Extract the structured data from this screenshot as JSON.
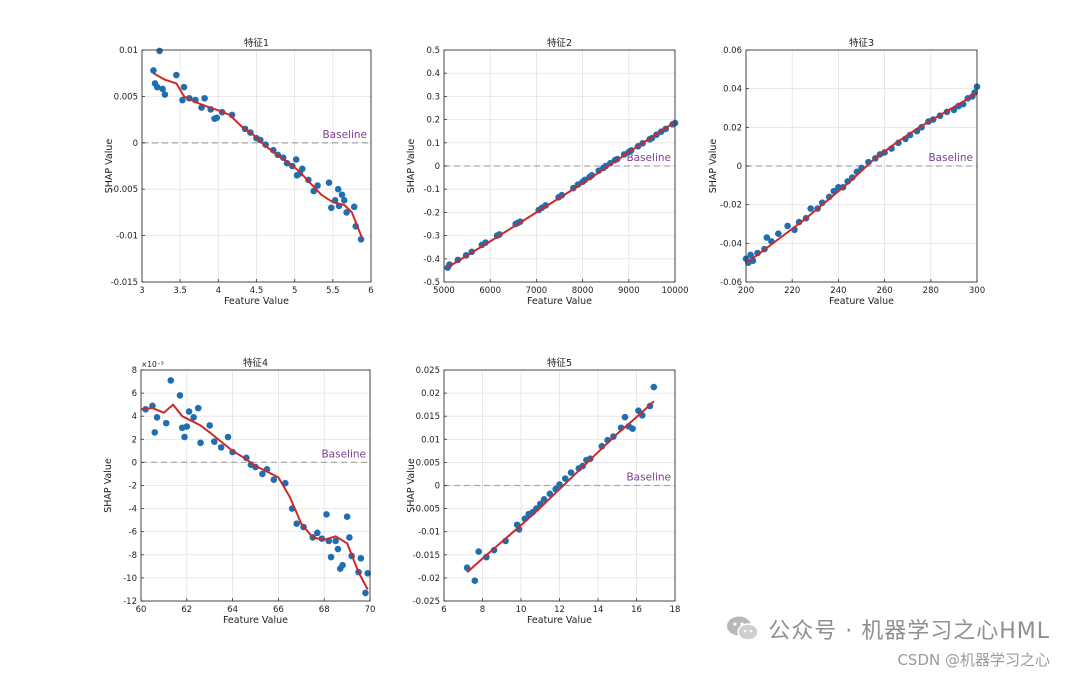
{
  "chart_data": [
    {
      "type": "scatter",
      "title": "特征1",
      "xlabel": "Feature Value",
      "ylabel": "SHAP Value",
      "xlim": [
        3,
        6
      ],
      "ylim": [
        -0.015,
        0.01
      ],
      "xticks": [
        3,
        3.5,
        4,
        4.5,
        5,
        5.5,
        6
      ],
      "yticks": [
        -0.015,
        -0.01,
        -0.005,
        0,
        0.005,
        0.01
      ],
      "baseline_label": "Baseline",
      "points": [
        [
          3.15,
          0.0078
        ],
        [
          3.17,
          0.0064
        ],
        [
          3.2,
          0.006
        ],
        [
          3.23,
          0.0099
        ],
        [
          3.27,
          0.0058
        ],
        [
          3.3,
          0.0052
        ],
        [
          3.45,
          0.0073
        ],
        [
          3.53,
          0.0046
        ],
        [
          3.55,
          0.006
        ],
        [
          3.62,
          0.0048
        ],
        [
          3.7,
          0.0046
        ],
        [
          3.78,
          0.0038
        ],
        [
          3.82,
          0.0048
        ],
        [
          3.9,
          0.0036
        ],
        [
          3.95,
          0.0026
        ],
        [
          3.98,
          0.0027
        ],
        [
          4.05,
          0.0033
        ],
        [
          4.18,
          0.003
        ],
        [
          4.35,
          0.0015
        ],
        [
          4.42,
          0.0011
        ],
        [
          4.5,
          0.0005
        ],
        [
          4.55,
          0.0003
        ],
        [
          4.62,
          -0.0002
        ],
        [
          4.72,
          -0.0008
        ],
        [
          4.78,
          -0.0013
        ],
        [
          4.85,
          -0.0016
        ],
        [
          4.9,
          -0.0022
        ],
        [
          4.97,
          -0.0025
        ],
        [
          5.02,
          -0.0018
        ],
        [
          5.03,
          -0.0035
        ],
        [
          5.07,
          -0.0033
        ],
        [
          5.1,
          -0.0028
        ],
        [
          5.18,
          -0.004
        ],
        [
          5.25,
          -0.0052
        ],
        [
          5.3,
          -0.0046
        ],
        [
          5.45,
          -0.0043
        ],
        [
          5.48,
          -0.007
        ],
        [
          5.53,
          -0.0062
        ],
        [
          5.57,
          -0.005
        ],
        [
          5.58,
          -0.0068
        ],
        [
          5.62,
          -0.0056
        ],
        [
          5.65,
          -0.0062
        ],
        [
          5.68,
          -0.0075
        ],
        [
          5.78,
          -0.0069
        ],
        [
          5.8,
          -0.009
        ],
        [
          5.87,
          -0.0104
        ]
      ],
      "curve": [
        [
          3.15,
          0.0075
        ],
        [
          3.3,
          0.0068
        ],
        [
          3.45,
          0.0064
        ],
        [
          3.55,
          0.005
        ],
        [
          3.7,
          0.0044
        ],
        [
          3.85,
          0.0039
        ],
        [
          4.0,
          0.0035
        ],
        [
          4.15,
          0.003
        ],
        [
          4.3,
          0.0018
        ],
        [
          4.45,
          0.0009
        ],
        [
          4.6,
          -0.0002
        ],
        [
          4.75,
          -0.0012
        ],
        [
          4.9,
          -0.002
        ],
        [
          5.05,
          -0.003
        ],
        [
          5.2,
          -0.0043
        ],
        [
          5.35,
          -0.0056
        ],
        [
          5.5,
          -0.0064
        ],
        [
          5.65,
          -0.0067
        ],
        [
          5.75,
          -0.0075
        ],
        [
          5.88,
          -0.0102
        ]
      ]
    },
    {
      "type": "scatter",
      "title": "特征2",
      "xlabel": "Feature Value",
      "ylabel": "SHAP Value",
      "xlim": [
        5000,
        10000
      ],
      "ylim": [
        -0.5,
        0.5
      ],
      "xticks": [
        5000,
        6000,
        7000,
        8000,
        9000,
        10000
      ],
      "yticks": [
        -0.5,
        -0.4,
        -0.3,
        -0.2,
        -0.1,
        0,
        0.1,
        0.2,
        0.3,
        0.4,
        0.5
      ],
      "baseline_label": "Baseline",
      "points": [
        [
          5080,
          -0.438
        ],
        [
          5120,
          -0.425
        ],
        [
          5300,
          -0.405
        ],
        [
          5480,
          -0.385
        ],
        [
          5600,
          -0.37
        ],
        [
          5820,
          -0.34
        ],
        [
          5900,
          -0.33
        ],
        [
          6150,
          -0.3
        ],
        [
          6200,
          -0.295
        ],
        [
          6550,
          -0.25
        ],
        [
          6600,
          -0.245
        ],
        [
          6650,
          -0.24
        ],
        [
          7050,
          -0.19
        ],
        [
          7120,
          -0.18
        ],
        [
          7200,
          -0.17
        ],
        [
          7480,
          -0.135
        ],
        [
          7550,
          -0.126
        ],
        [
          7800,
          -0.095
        ],
        [
          7900,
          -0.08
        ],
        [
          8000,
          -0.068
        ],
        [
          8050,
          -0.06
        ],
        [
          8150,
          -0.048
        ],
        [
          8200,
          -0.04
        ],
        [
          8350,
          -0.02
        ],
        [
          8450,
          -0.008
        ],
        [
          8500,
          0.0
        ],
        [
          8600,
          0.012
        ],
        [
          8700,
          0.025
        ],
        [
          8750,
          0.03
        ],
        [
          8900,
          0.05
        ],
        [
          9000,
          0.06
        ],
        [
          9050,
          0.067
        ],
        [
          9200,
          0.085
        ],
        [
          9300,
          0.098
        ],
        [
          9450,
          0.115
        ],
        [
          9500,
          0.12
        ],
        [
          9600,
          0.135
        ],
        [
          9700,
          0.148
        ],
        [
          9800,
          0.16
        ],
        [
          9950,
          0.18
        ],
        [
          10000,
          0.185
        ]
      ],
      "curve": [
        [
          5050,
          -0.44
        ],
        [
          6000,
          -0.325
        ],
        [
          7000,
          -0.2
        ],
        [
          8000,
          -0.075
        ],
        [
          9000,
          0.06
        ],
        [
          10000,
          0.19
        ]
      ]
    },
    {
      "type": "scatter",
      "title": "特征3",
      "xlabel": "Feature Value",
      "ylabel": "SHAP Value",
      "xlim": [
        200,
        300
      ],
      "ylim": [
        -0.06,
        0.06
      ],
      "xticks": [
        200,
        220,
        240,
        260,
        280,
        300
      ],
      "yticks": [
        -0.06,
        -0.04,
        -0.02,
        0,
        0.02,
        0.04,
        0.06
      ],
      "baseline_label": "Baseline",
      "points": [
        [
          200,
          -0.048
        ],
        [
          201,
          -0.05
        ],
        [
          202,
          -0.046
        ],
        [
          203,
          -0.049
        ],
        [
          205,
          -0.045
        ],
        [
          208,
          -0.043
        ],
        [
          209,
          -0.037
        ],
        [
          211,
          -0.039
        ],
        [
          214,
          -0.035
        ],
        [
          218,
          -0.031
        ],
        [
          221,
          -0.033
        ],
        [
          223,
          -0.029
        ],
        [
          226,
          -0.027
        ],
        [
          228,
          -0.022
        ],
        [
          231,
          -0.022
        ],
        [
          233,
          -0.019
        ],
        [
          236,
          -0.016
        ],
        [
          238,
          -0.013
        ],
        [
          240,
          -0.011
        ],
        [
          242,
          -0.011
        ],
        [
          244,
          -0.008
        ],
        [
          246,
          -0.006
        ],
        [
          248,
          -0.003
        ],
        [
          250,
          -0.001
        ],
        [
          253,
          0.002
        ],
        [
          256,
          0.004
        ],
        [
          258,
          0.006
        ],
        [
          260,
          0.007
        ],
        [
          263,
          0.009
        ],
        [
          266,
          0.012
        ],
        [
          269,
          0.014
        ],
        [
          271,
          0.016
        ],
        [
          274,
          0.018
        ],
        [
          276,
          0.02
        ],
        [
          279,
          0.023
        ],
        [
          281,
          0.024
        ],
        [
          284,
          0.026
        ],
        [
          287,
          0.028
        ],
        [
          290,
          0.029
        ],
        [
          292,
          0.031
        ],
        [
          294,
          0.032
        ],
        [
          296,
          0.035
        ],
        [
          298,
          0.036
        ],
        [
          299,
          0.038
        ],
        [
          300,
          0.041
        ]
      ],
      "curve": [
        [
          200,
          -0.05
        ],
        [
          205,
          -0.046
        ],
        [
          215,
          -0.037
        ],
        [
          225,
          -0.028
        ],
        [
          235,
          -0.018
        ],
        [
          245,
          -0.008
        ],
        [
          255,
          0.003
        ],
        [
          265,
          0.012
        ],
        [
          275,
          0.02
        ],
        [
          285,
          0.027
        ],
        [
          295,
          0.034
        ],
        [
          300,
          0.038
        ]
      ]
    },
    {
      "type": "scatter",
      "title": "特征4",
      "xlabel": "Feature Value",
      "ylabel": "SHAP Value",
      "exponent_label": "×10⁻³",
      "xlim": [
        60,
        70
      ],
      "ylim": [
        -12,
        8
      ],
      "xticks": [
        60,
        62,
        64,
        66,
        68,
        70
      ],
      "yticks": [
        -12,
        -10,
        -8,
        -6,
        -4,
        -2,
        0,
        2,
        4,
        6,
        8
      ],
      "baseline_label": "Baseline",
      "points": [
        [
          60.2,
          4.6
        ],
        [
          60.5,
          4.9
        ],
        [
          60.6,
          2.6
        ],
        [
          60.7,
          3.9
        ],
        [
          61.1,
          3.4
        ],
        [
          61.3,
          7.1
        ],
        [
          61.7,
          5.8
        ],
        [
          61.8,
          3.0
        ],
        [
          61.9,
          2.2
        ],
        [
          62.0,
          3.1
        ],
        [
          62.1,
          4.4
        ],
        [
          62.3,
          3.9
        ],
        [
          62.5,
          4.7
        ],
        [
          62.6,
          1.7
        ],
        [
          63.0,
          3.2
        ],
        [
          63.2,
          1.8
        ],
        [
          63.5,
          1.3
        ],
        [
          63.8,
          2.2
        ],
        [
          64.0,
          0.9
        ],
        [
          64.6,
          0.4
        ],
        [
          64.8,
          -0.2
        ],
        [
          65.0,
          -0.4
        ],
        [
          65.3,
          -1.0
        ],
        [
          65.5,
          -0.6
        ],
        [
          65.8,
          -1.5
        ],
        [
          66.3,
          -1.8
        ],
        [
          66.6,
          -4.0
        ],
        [
          66.8,
          -5.3
        ],
        [
          67.1,
          -5.6
        ],
        [
          67.5,
          -6.5
        ],
        [
          67.7,
          -6.1
        ],
        [
          67.9,
          -6.6
        ],
        [
          68.1,
          -4.5
        ],
        [
          68.2,
          -6.8
        ],
        [
          68.3,
          -8.2
        ],
        [
          68.5,
          -6.8
        ],
        [
          68.6,
          -7.5
        ],
        [
          68.7,
          -9.2
        ],
        [
          68.8,
          -8.9
        ],
        [
          69.0,
          -4.7
        ],
        [
          69.1,
          -6.5
        ],
        [
          69.2,
          -8.1
        ],
        [
          69.5,
          -9.5
        ],
        [
          69.6,
          -8.3
        ],
        [
          69.8,
          -11.3
        ],
        [
          69.9,
          -9.6
        ]
      ],
      "curve": [
        [
          60.0,
          4.6
        ],
        [
          60.5,
          4.7
        ],
        [
          61.0,
          4.3
        ],
        [
          61.4,
          5.0
        ],
        [
          61.8,
          4.0
        ],
        [
          62.2,
          3.6
        ],
        [
          62.6,
          3.2
        ],
        [
          63.0,
          2.6
        ],
        [
          63.5,
          1.8
        ],
        [
          64.0,
          1.0
        ],
        [
          64.5,
          0.4
        ],
        [
          65.0,
          -0.3
        ],
        [
          65.5,
          -0.8
        ],
        [
          66.0,
          -1.3
        ],
        [
          66.5,
          -3.0
        ],
        [
          67.0,
          -5.3
        ],
        [
          67.5,
          -6.5
        ],
        [
          68.0,
          -6.7
        ],
        [
          68.5,
          -6.4
        ],
        [
          69.0,
          -7.0
        ],
        [
          69.5,
          -9.5
        ],
        [
          69.9,
          -11.0
        ]
      ]
    },
    {
      "type": "scatter",
      "title": "特征5",
      "xlabel": "Feature Value",
      "ylabel": "SHAP Value",
      "xlim": [
        6,
        18
      ],
      "ylim": [
        -0.025,
        0.025
      ],
      "xticks": [
        6,
        8,
        10,
        12,
        14,
        16,
        18
      ],
      "yticks": [
        -0.025,
        -0.02,
        -0.015,
        -0.01,
        -0.005,
        0,
        0.005,
        0.01,
        0.015,
        0.02,
        0.025
      ],
      "baseline_label": "Baseline",
      "points": [
        [
          7.2,
          -0.0178
        ],
        [
          7.6,
          -0.0206
        ],
        [
          7.8,
          -0.0143
        ],
        [
          8.2,
          -0.0155
        ],
        [
          8.6,
          -0.014
        ],
        [
          9.2,
          -0.012
        ],
        [
          9.8,
          -0.0085
        ],
        [
          9.9,
          -0.0095
        ],
        [
          10.2,
          -0.0072
        ],
        [
          10.4,
          -0.0062
        ],
        [
          10.6,
          -0.0058
        ],
        [
          10.8,
          -0.005
        ],
        [
          11.0,
          -0.004
        ],
        [
          11.2,
          -0.003
        ],
        [
          11.5,
          -0.0018
        ],
        [
          11.8,
          -0.0008
        ],
        [
          12.0,
          0.0002
        ],
        [
          12.3,
          0.0015
        ],
        [
          12.6,
          0.0028
        ],
        [
          13.0,
          0.0037
        ],
        [
          13.2,
          0.0042
        ],
        [
          13.4,
          0.0055
        ],
        [
          13.6,
          0.0058
        ],
        [
          14.2,
          0.0085
        ],
        [
          14.5,
          0.0098
        ],
        [
          14.8,
          0.0106
        ],
        [
          15.2,
          0.0125
        ],
        [
          15.4,
          0.0148
        ],
        [
          15.6,
          0.0128
        ],
        [
          15.8,
          0.0123
        ],
        [
          16.1,
          0.0162
        ],
        [
          16.3,
          0.0152
        ],
        [
          16.7,
          0.0172
        ],
        [
          16.9,
          0.0213
        ]
      ],
      "curve": [
        [
          7.2,
          -0.0188
        ],
        [
          8,
          -0.0158
        ],
        [
          9,
          -0.0122
        ],
        [
          10,
          -0.0086
        ],
        [
          11,
          -0.0048
        ],
        [
          12,
          -0.0008
        ],
        [
          13,
          0.0032
        ],
        [
          14,
          0.0072
        ],
        [
          15,
          0.0112
        ],
        [
          16,
          0.0148
        ],
        [
          16.9,
          0.0182
        ]
      ]
    }
  ],
  "watermark": {
    "main": "公众号 · 机器学习之心HML",
    "sub": "CSDN @机器学习之心"
  },
  "colors": {
    "point": "#1f6fb0",
    "curve": "#cc2a2a",
    "baseline": "#aaaaaa",
    "baseline_text": "#7e3d94",
    "grid": "#e3e3e3",
    "axis": "#333333"
  }
}
